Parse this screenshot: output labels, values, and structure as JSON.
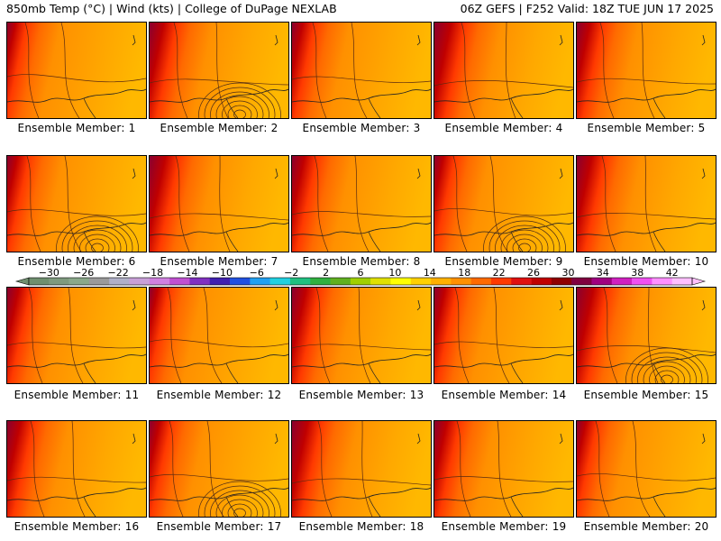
{
  "header": {
    "left": "850mb Temp (°C) | Wind (kts) | College of DuPage NEXLAB",
    "right": "06Z GEFS | F252 Valid: 18Z TUE JUN 17 2025"
  },
  "members": [
    {
      "label": "Ensemble Member: 1",
      "low": false
    },
    {
      "label": "Ensemble Member: 2",
      "low": true
    },
    {
      "label": "Ensemble Member: 3",
      "low": false
    },
    {
      "label": "Ensemble Member: 4",
      "low": false
    },
    {
      "label": "Ensemble Member: 5",
      "low": false
    },
    {
      "label": "Ensemble Member: 6",
      "low": true
    },
    {
      "label": "Ensemble Member: 7",
      "low": false
    },
    {
      "label": "Ensemble Member: 8",
      "low": false
    },
    {
      "label": "Ensemble Member: 9",
      "low": true
    },
    {
      "label": "Ensemble Member: 10",
      "low": false
    },
    {
      "label": "Ensemble Member: 11",
      "low": false
    },
    {
      "label": "Ensemble Member: 12",
      "low": false
    },
    {
      "label": "Ensemble Member: 13",
      "low": false
    },
    {
      "label": "Ensemble Member: 14",
      "low": false
    },
    {
      "label": "Ensemble Member: 15",
      "low": true
    },
    {
      "label": "Ensemble Member: 16",
      "low": false
    },
    {
      "label": "Ensemble Member: 17",
      "low": true
    },
    {
      "label": "Ensemble Member: 18",
      "low": false
    },
    {
      "label": "Ensemble Member: 19",
      "low": false
    },
    {
      "label": "Ensemble Member: 20",
      "low": false
    }
  ],
  "colorbar": {
    "ticks": [
      -30,
      -26,
      -22,
      -18,
      -14,
      -10,
      -6,
      -2,
      2,
      6,
      10,
      14,
      18,
      22,
      26,
      30,
      34,
      38,
      42
    ],
    "colors": [
      "#6f8f6f",
      "#7e9a7e",
      "#8aa88a",
      "#9a9a9a",
      "#b0b0c8",
      "#c8a0d8",
      "#d080e0",
      "#c050d0",
      "#8030c0",
      "#4020b0",
      "#2050e0",
      "#20a0f0",
      "#20d0e0",
      "#20c080",
      "#30b040",
      "#60b020",
      "#a0d000",
      "#e0e000",
      "#ffff00",
      "#ffd000",
      "#ffb000",
      "#ff9000",
      "#ff6a00",
      "#ff3a00",
      "#e01010",
      "#c00000",
      "#900000",
      "#800040",
      "#a00080",
      "#d020c0",
      "#f050f0",
      "#ff90ff",
      "#ffc0ff"
    ]
  }
}
